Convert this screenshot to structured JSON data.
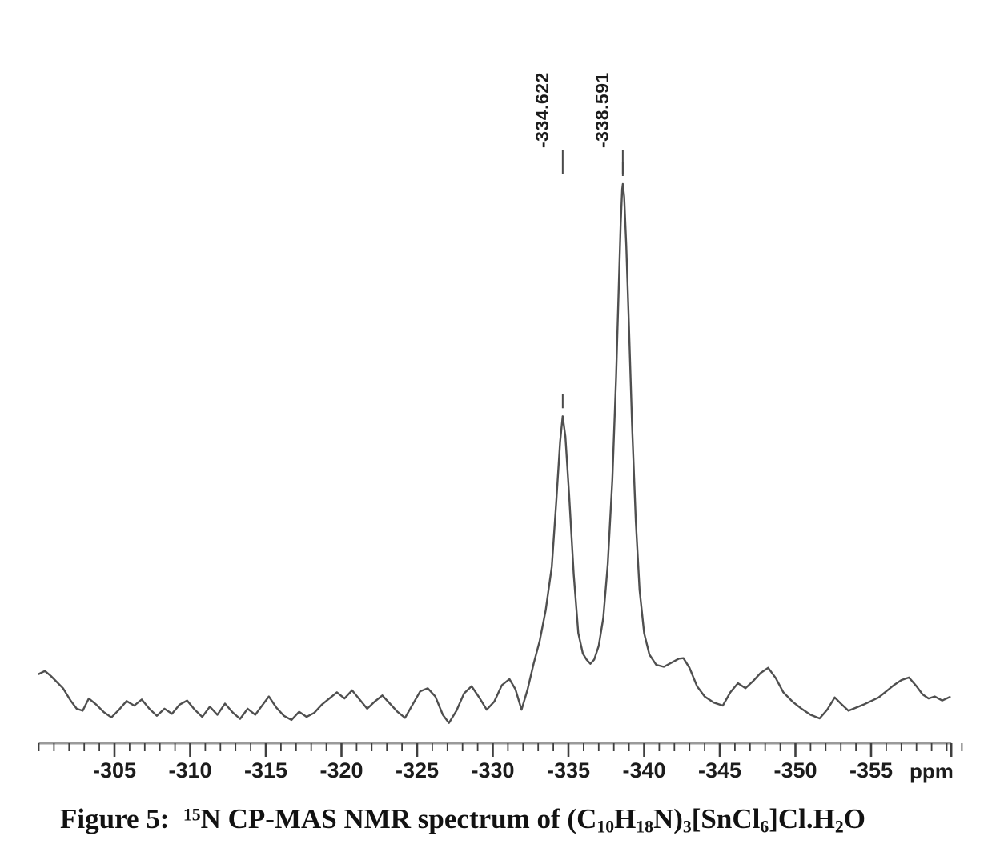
{
  "colors": {
    "background": "#ffffff",
    "trace": "#4f4f4f",
    "axis_line": "#9a9a9a",
    "tick": "#3f3f3f",
    "marker": "#4a4a4a",
    "text": "#1c1c1c"
  },
  "caption": {
    "text_plain": "Figure 5:  15N CP-MAS NMR spectrum of (C10H18N)3[SnCl6]Cl.H2O",
    "segments": [
      {
        "style": "normal",
        "text": "Figure 5:  "
      },
      {
        "style": "sup",
        "text": "15"
      },
      {
        "style": "normal",
        "text": "N CP-MAS NMR spectrum of (C"
      },
      {
        "style": "sub",
        "text": "10"
      },
      {
        "style": "normal",
        "text": "H"
      },
      {
        "style": "sub",
        "text": "18"
      },
      {
        "style": "normal",
        "text": "N)"
      },
      {
        "style": "sub",
        "text": "3"
      },
      {
        "style": "normal",
        "text": "[SnCl"
      },
      {
        "style": "sub",
        "text": "6"
      },
      {
        "style": "normal",
        "text": "]Cl.H"
      },
      {
        "style": "sub",
        "text": "2"
      },
      {
        "style": "normal",
        "text": "O"
      }
    ]
  },
  "chart_data": {
    "type": "line",
    "kind": "15N CP-MAS NMR spectrum",
    "xlabel": "ppm",
    "x_axis_reversed": true,
    "x_range": [
      -300.0,
      -360.3
    ],
    "x_ticks": [
      -305,
      -310,
      -315,
      -320,
      -325,
      -330,
      -335,
      -340,
      -345,
      -350,
      -355
    ],
    "minor_tick_step_ppm": 1,
    "y_axis_shown": false,
    "peaks": [
      {
        "label": "-334.622",
        "ppm": -334.622,
        "relative_intensity": 0.545
      },
      {
        "label": "-338.591",
        "ppm": -338.591,
        "relative_intensity": 1.0
      }
    ],
    "trace": [
      [
        -300.0,
        0.04
      ],
      [
        -300.4,
        0.046
      ],
      [
        -300.8,
        0.036
      ],
      [
        -301.6,
        0.012
      ],
      [
        -302.1,
        -0.012
      ],
      [
        -302.5,
        -0.028
      ],
      [
        -302.9,
        -0.032
      ],
      [
        -303.3,
        -0.008
      ],
      [
        -303.8,
        -0.02
      ],
      [
        -304.3,
        -0.035
      ],
      [
        -304.8,
        -0.045
      ],
      [
        -305.3,
        -0.03
      ],
      [
        -305.8,
        -0.013
      ],
      [
        -306.3,
        -0.022
      ],
      [
        -306.8,
        -0.01
      ],
      [
        -307.3,
        -0.028
      ],
      [
        -307.8,
        -0.042
      ],
      [
        -308.3,
        -0.028
      ],
      [
        -308.8,
        -0.038
      ],
      [
        -309.3,
        -0.02
      ],
      [
        -309.8,
        -0.012
      ],
      [
        -310.3,
        -0.03
      ],
      [
        -310.8,
        -0.044
      ],
      [
        -311.3,
        -0.024
      ],
      [
        -311.8,
        -0.04
      ],
      [
        -312.3,
        -0.018
      ],
      [
        -312.8,
        -0.035
      ],
      [
        -313.3,
        -0.048
      ],
      [
        -313.8,
        -0.028
      ],
      [
        -314.3,
        -0.04
      ],
      [
        -314.8,
        -0.02
      ],
      [
        -315.2,
        -0.004
      ],
      [
        -315.7,
        -0.026
      ],
      [
        -316.2,
        -0.042
      ],
      [
        -316.7,
        -0.05
      ],
      [
        -317.2,
        -0.034
      ],
      [
        -317.7,
        -0.044
      ],
      [
        -318.2,
        -0.036
      ],
      [
        -318.7,
        -0.02
      ],
      [
        -319.2,
        -0.008
      ],
      [
        -319.7,
        0.004
      ],
      [
        -320.2,
        -0.008
      ],
      [
        -320.7,
        0.008
      ],
      [
        -321.2,
        -0.01
      ],
      [
        -321.7,
        -0.028
      ],
      [
        -322.2,
        -0.014
      ],
      [
        -322.7,
        -0.002
      ],
      [
        -323.2,
        -0.018
      ],
      [
        -323.7,
        -0.034
      ],
      [
        -324.2,
        -0.046
      ],
      [
        -324.7,
        -0.02
      ],
      [
        -325.2,
        0.006
      ],
      [
        -325.7,
        0.012
      ],
      [
        -326.2,
        -0.004
      ],
      [
        -326.7,
        -0.04
      ],
      [
        -327.1,
        -0.056
      ],
      [
        -327.6,
        -0.032
      ],
      [
        -328.1,
        0.002
      ],
      [
        -328.6,
        0.016
      ],
      [
        -329.1,
        -0.006
      ],
      [
        -329.6,
        -0.03
      ],
      [
        -330.1,
        -0.014
      ],
      [
        -330.6,
        0.018
      ],
      [
        -331.1,
        0.03
      ],
      [
        -331.5,
        0.01
      ],
      [
        -331.9,
        -0.03
      ],
      [
        -332.3,
        0.01
      ],
      [
        -332.7,
        0.06
      ],
      [
        -333.1,
        0.105
      ],
      [
        -333.5,
        0.165
      ],
      [
        -333.9,
        0.25
      ],
      [
        -334.2,
        0.38
      ],
      [
        -334.45,
        0.495
      ],
      [
        -334.62,
        0.545
      ],
      [
        -334.8,
        0.505
      ],
      [
        -335.05,
        0.39
      ],
      [
        -335.35,
        0.235
      ],
      [
        -335.65,
        0.12
      ],
      [
        -335.95,
        0.08
      ],
      [
        -336.2,
        0.068
      ],
      [
        -336.45,
        0.06
      ],
      [
        -336.7,
        0.068
      ],
      [
        -337.0,
        0.095
      ],
      [
        -337.3,
        0.15
      ],
      [
        -337.6,
        0.255
      ],
      [
        -337.9,
        0.42
      ],
      [
        -338.15,
        0.62
      ],
      [
        -338.33,
        0.8
      ],
      [
        -338.45,
        0.92
      ],
      [
        -338.55,
        0.99
      ],
      [
        -338.59,
        1.0
      ],
      [
        -338.68,
        0.975
      ],
      [
        -338.82,
        0.88
      ],
      [
        -339.0,
        0.72
      ],
      [
        -339.2,
        0.53
      ],
      [
        -339.45,
        0.34
      ],
      [
        -339.7,
        0.205
      ],
      [
        -340.0,
        0.12
      ],
      [
        -340.35,
        0.078
      ],
      [
        -340.8,
        0.058
      ],
      [
        -341.3,
        0.054
      ],
      [
        -341.8,
        0.062
      ],
      [
        -342.3,
        0.07
      ],
      [
        -342.6,
        0.071
      ],
      [
        -343.0,
        0.052
      ],
      [
        -343.5,
        0.016
      ],
      [
        -344.0,
        -0.004
      ],
      [
        -344.6,
        -0.016
      ],
      [
        -345.2,
        -0.022
      ],
      [
        -345.7,
        0.004
      ],
      [
        -346.2,
        0.022
      ],
      [
        -346.7,
        0.012
      ],
      [
        -347.2,
        0.026
      ],
      [
        -347.7,
        0.042
      ],
      [
        -348.2,
        0.052
      ],
      [
        -348.7,
        0.032
      ],
      [
        -349.2,
        0.004
      ],
      [
        -349.8,
        -0.014
      ],
      [
        -350.4,
        -0.028
      ],
      [
        -351.0,
        -0.04
      ],
      [
        -351.6,
        -0.047
      ],
      [
        -352.1,
        -0.03
      ],
      [
        -352.6,
        -0.006
      ],
      [
        -353.0,
        -0.018
      ],
      [
        -353.5,
        -0.032
      ],
      [
        -354.0,
        -0.026
      ],
      [
        -354.5,
        -0.02
      ],
      [
        -355.0,
        -0.013
      ],
      [
        -355.5,
        -0.006
      ],
      [
        -356.0,
        0.006
      ],
      [
        -356.5,
        0.018
      ],
      [
        -357.0,
        0.028
      ],
      [
        -357.5,
        0.033
      ],
      [
        -358.0,
        0.016
      ],
      [
        -358.4,
        0.0
      ],
      [
        -358.8,
        -0.008
      ],
      [
        -359.2,
        -0.004
      ],
      [
        -359.7,
        -0.012
      ],
      [
        -360.2,
        -0.005
      ]
    ]
  }
}
